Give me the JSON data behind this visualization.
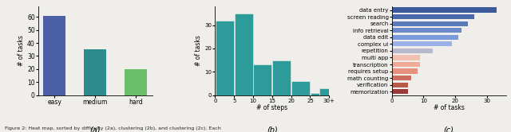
{
  "a_categories": [
    "easy",
    "medium",
    "hard"
  ],
  "a_values": [
    61,
    35,
    20
  ],
  "a_colors": [
    "#4a5fa5",
    "#2e8b8b",
    "#6abf69"
  ],
  "a_ylabel": "# of tasks",
  "b_values": [
    32,
    35,
    13,
    15,
    6,
    1,
    3
  ],
  "b_color": "#2e9b9b",
  "b_xlabel": "# of steps",
  "b_ylabel": "# of tasks",
  "c_categories": [
    "data entry",
    "screen reading",
    "search",
    "info retrieval",
    "data edit",
    "complex ui",
    "repetition",
    "multi app",
    "transcription",
    "requires setup",
    "math counting",
    "verification",
    "memorization"
  ],
  "c_values": [
    33,
    26,
    24,
    22,
    21,
    19,
    13,
    9,
    9,
    8,
    6,
    5,
    5
  ],
  "c_colors": [
    "#3a5a9c",
    "#4a6aac",
    "#5a7abc",
    "#6a8acc",
    "#7a9adc",
    "#9ab0e8",
    "#b8b8cc",
    "#f2c0b0",
    "#f0aa98",
    "#e89080",
    "#cc6e5e",
    "#b85a4a",
    "#9a3a3a"
  ],
  "c_xlabel": "# of tasks",
  "fig_width": 6.4,
  "fig_height": 1.66,
  "bg_color": "#f0eeea"
}
